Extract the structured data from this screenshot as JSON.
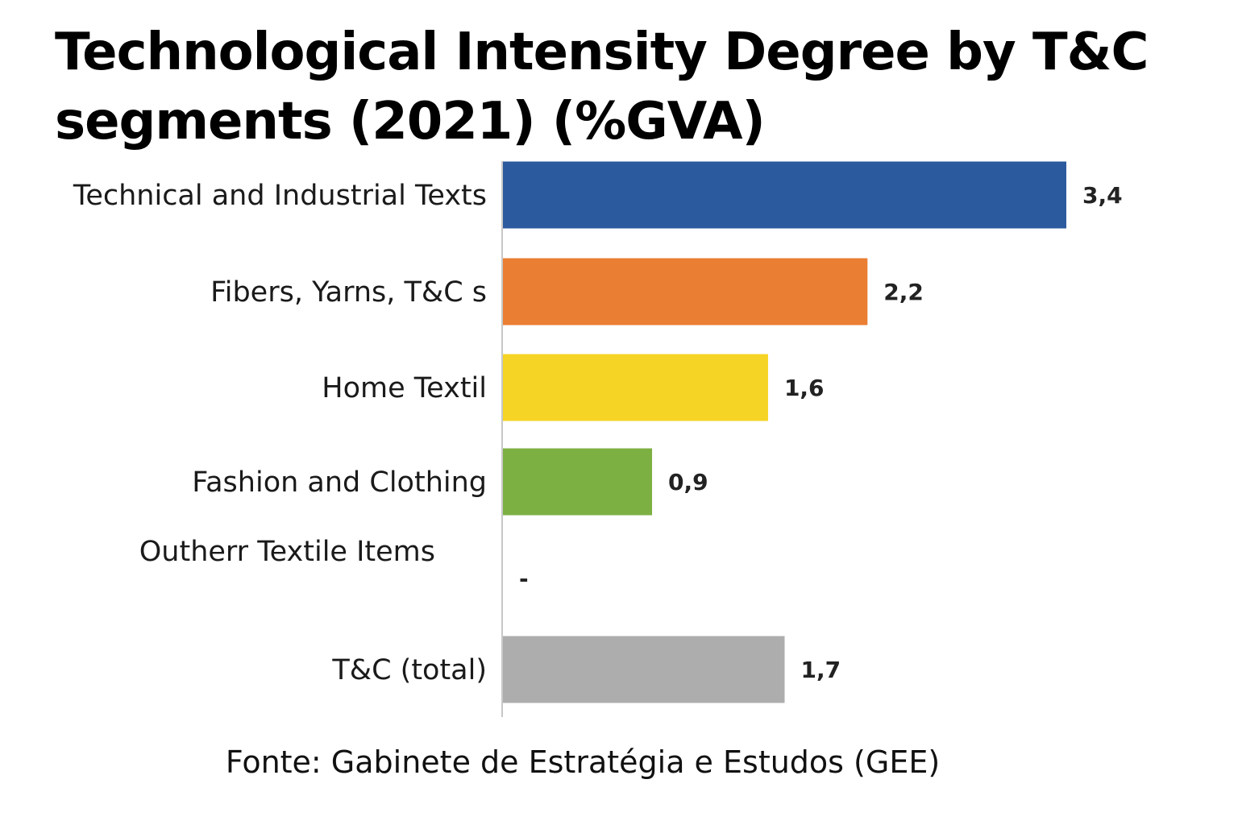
{
  "chart_data": {
    "type": "bar",
    "orientation": "horizontal",
    "title": "Technological Intensity Degree by T&C segments (2021) (%GVA)",
    "categories": [
      "Technical and Industrial Texts",
      "Fibers, Yarns, T&C s",
      "Home Textil",
      "Fashion and Clothing",
      "Outherr Textile  Items",
      "T&C (total)"
    ],
    "values": [
      3.4,
      2.2,
      1.6,
      0.9,
      null,
      1.7
    ],
    "value_labels": [
      "3,4",
      "2,2",
      "1,6",
      "0,9",
      "-",
      "1,7"
    ],
    "colors": [
      "#2B5A9E",
      "#EA7E33",
      "#F6D425",
      "#7DB043",
      "#FFFFFF",
      "#ADADAE"
    ],
    "xlabel": "",
    "ylabel": "",
    "xlim": [
      0,
      3.4
    ],
    "grid": false,
    "legend": "none"
  },
  "source": "Fonte: Gabinete de Estratégia e Estudos (GEE)"
}
